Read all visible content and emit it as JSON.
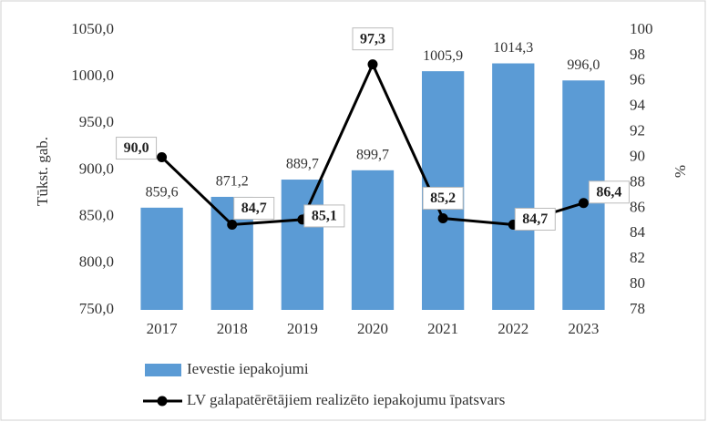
{
  "chart_data": {
    "type": "bar",
    "categories": [
      "2017",
      "2018",
      "2019",
      "2020",
      "2021",
      "2022",
      "2023"
    ],
    "y_label": "Tūkst. gab.",
    "y2_label": "%",
    "series": [
      {
        "name": "Ievestie iepakojumi",
        "type": "bar",
        "color": "#5b9bd5",
        "values": [
          859.6,
          871.2,
          889.7,
          899.7,
          1005.9,
          1014.3,
          996.0
        ],
        "value_labels": [
          "859,6",
          "871,2",
          "889,7",
          "899,7",
          "1005,9",
          "1014,3",
          "996,0"
        ]
      },
      {
        "name": "LV galapatērētājiem realizēto iepakojumu īpatsvars",
        "type": "line",
        "axis": "y2",
        "color": "#000000",
        "values": [
          90.0,
          84.7,
          85.1,
          97.3,
          85.2,
          84.7,
          86.4
        ],
        "value_labels": [
          "90,0",
          "84,7",
          "85,1",
          "97,3",
          "85,2",
          "84,7",
          "86,4"
        ]
      }
    ],
    "ylim": [
      750,
      1050
    ],
    "yticks": [
      {
        "value": 750,
        "label": "750,0"
      },
      {
        "value": 800,
        "label": "800,0"
      },
      {
        "value": 850,
        "label": "850,0"
      },
      {
        "value": 900,
        "label": "900,0"
      },
      {
        "value": 950,
        "label": "950,0"
      },
      {
        "value": 1000,
        "label": "1000,0"
      },
      {
        "value": 1050,
        "label": "1050,0"
      }
    ],
    "y2lim": [
      78,
      100
    ],
    "y2ticks": [
      78,
      80,
      82,
      84,
      86,
      88,
      90,
      92,
      94,
      96,
      98,
      100
    ],
    "grid": false,
    "legend": "bottom"
  }
}
